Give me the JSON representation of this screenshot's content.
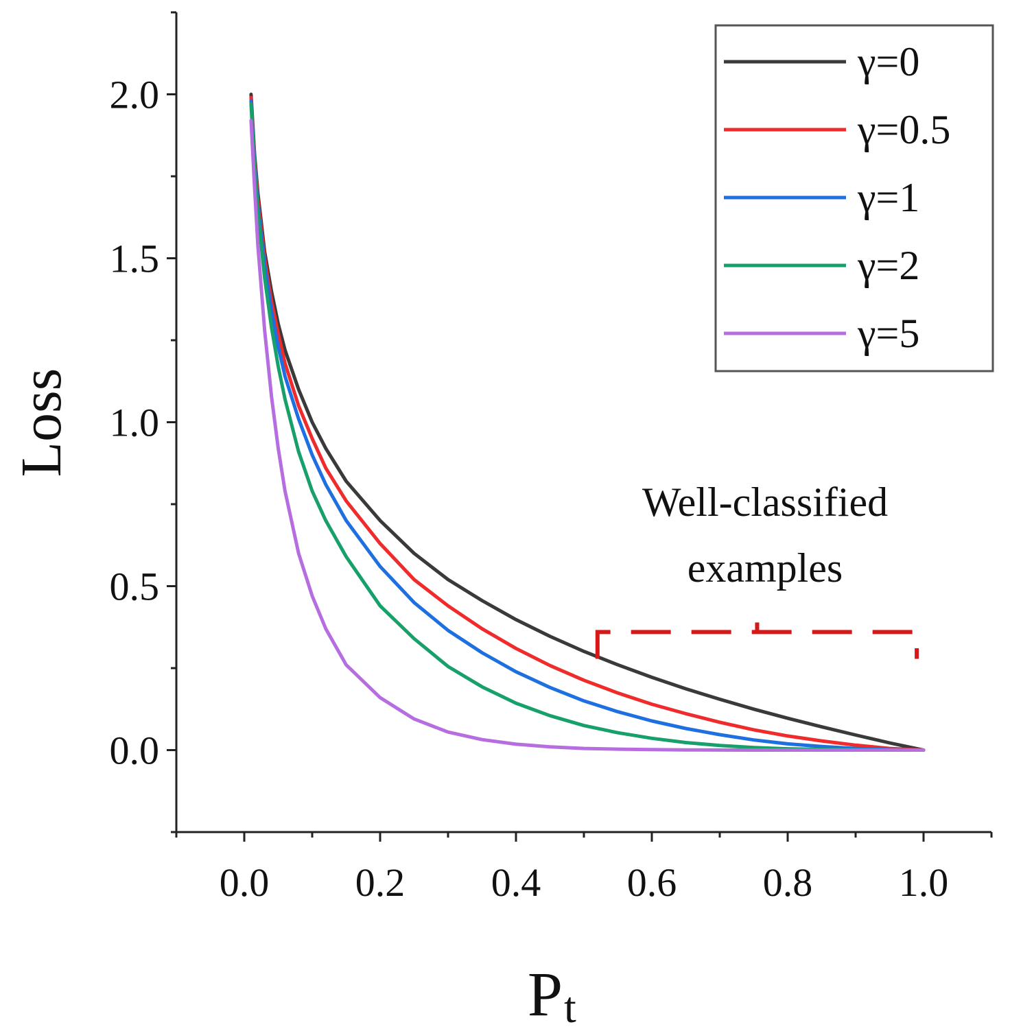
{
  "chart_data": {
    "type": "line",
    "title": "",
    "xlabel": "P",
    "xlabel_subscript": "t",
    "ylabel": "Loss",
    "xlim": [
      -0.1,
      1.1
    ],
    "ylim": [
      -0.25,
      2.25
    ],
    "xticks": [
      0.0,
      0.2,
      0.4,
      0.6,
      0.8,
      1.0
    ],
    "xtick_labels": [
      "0.0",
      "0.2",
      "0.4",
      "0.6",
      "0.8",
      "1.0"
    ],
    "yticks": [
      0.0,
      0.5,
      1.0,
      1.5,
      2.0
    ],
    "ytick_labels": [
      "0.0",
      "0.5",
      "1.0",
      "1.5",
      "2.0"
    ],
    "grid": false,
    "legend_position": "top-right",
    "x": [
      0.01,
      0.015,
      0.02,
      0.03,
      0.04,
      0.05,
      0.06,
      0.08,
      0.1,
      0.12,
      0.15,
      0.2,
      0.25,
      0.3,
      0.35,
      0.4,
      0.45,
      0.5,
      0.55,
      0.6,
      0.65,
      0.7,
      0.75,
      0.8,
      0.85,
      0.9,
      0.95,
      1.0
    ],
    "series": [
      {
        "name": "γ=0",
        "label": "γ=0",
        "color": "#3a3a3a",
        "values": [
          2.0,
          1.82,
          1.7,
          1.52,
          1.4,
          1.3,
          1.22,
          1.1,
          1.0,
          0.92,
          0.82,
          0.7,
          0.6,
          0.52,
          0.456,
          0.398,
          0.347,
          0.301,
          0.26,
          0.222,
          0.187,
          0.155,
          0.125,
          0.097,
          0.071,
          0.046,
          0.022,
          0.0
        ]
      },
      {
        "name": "γ=0.5",
        "label": "γ=0.5",
        "color": "#ef2b2b",
        "values": [
          1.99,
          1.81,
          1.68,
          1.5,
          1.37,
          1.27,
          1.18,
          1.05,
          0.95,
          0.86,
          0.76,
          0.63,
          0.52,
          0.44,
          0.37,
          0.31,
          0.258,
          0.213,
          0.174,
          0.14,
          0.111,
          0.085,
          0.062,
          0.043,
          0.028,
          0.015,
          0.005,
          0.0
        ]
      },
      {
        "name": "γ=1",
        "label": "γ=1",
        "color": "#1e6fe0",
        "values": [
          1.98,
          1.8,
          1.66,
          1.48,
          1.34,
          1.23,
          1.14,
          1.01,
          0.9,
          0.81,
          0.7,
          0.56,
          0.45,
          0.365,
          0.297,
          0.239,
          0.191,
          0.15,
          0.117,
          0.089,
          0.066,
          0.047,
          0.031,
          0.019,
          0.011,
          0.005,
          0.001,
          0.0
        ]
      },
      {
        "name": "γ=2",
        "label": "γ=2",
        "color": "#17a06a",
        "values": [
          1.97,
          1.78,
          1.64,
          1.44,
          1.29,
          1.17,
          1.07,
          0.91,
          0.79,
          0.7,
          0.59,
          0.44,
          0.34,
          0.255,
          0.193,
          0.143,
          0.105,
          0.075,
          0.053,
          0.036,
          0.023,
          0.014,
          0.008,
          0.004,
          0.002,
          0.0005,
          0.0001,
          0.0
        ]
      },
      {
        "name": "γ=5",
        "label": "γ=5",
        "color": "#b66ddf",
        "values": [
          1.92,
          1.72,
          1.54,
          1.28,
          1.08,
          0.92,
          0.79,
          0.6,
          0.47,
          0.37,
          0.26,
          0.16,
          0.095,
          0.055,
          0.032,
          0.018,
          0.01,
          0.005,
          0.003,
          0.0015,
          0.0007,
          0.0003,
          0.0001,
          0.0,
          0.0,
          0.0,
          0.0,
          0.0
        ]
      }
    ],
    "annotations": [
      {
        "text_line1": "Well-classified",
        "text_line2": "examples",
        "bracket": {
          "x_start": 0.52,
          "x_end": 0.99,
          "y": 0.36,
          "y_bottom": 0.32,
          "color": "#d61818"
        }
      }
    ]
  }
}
